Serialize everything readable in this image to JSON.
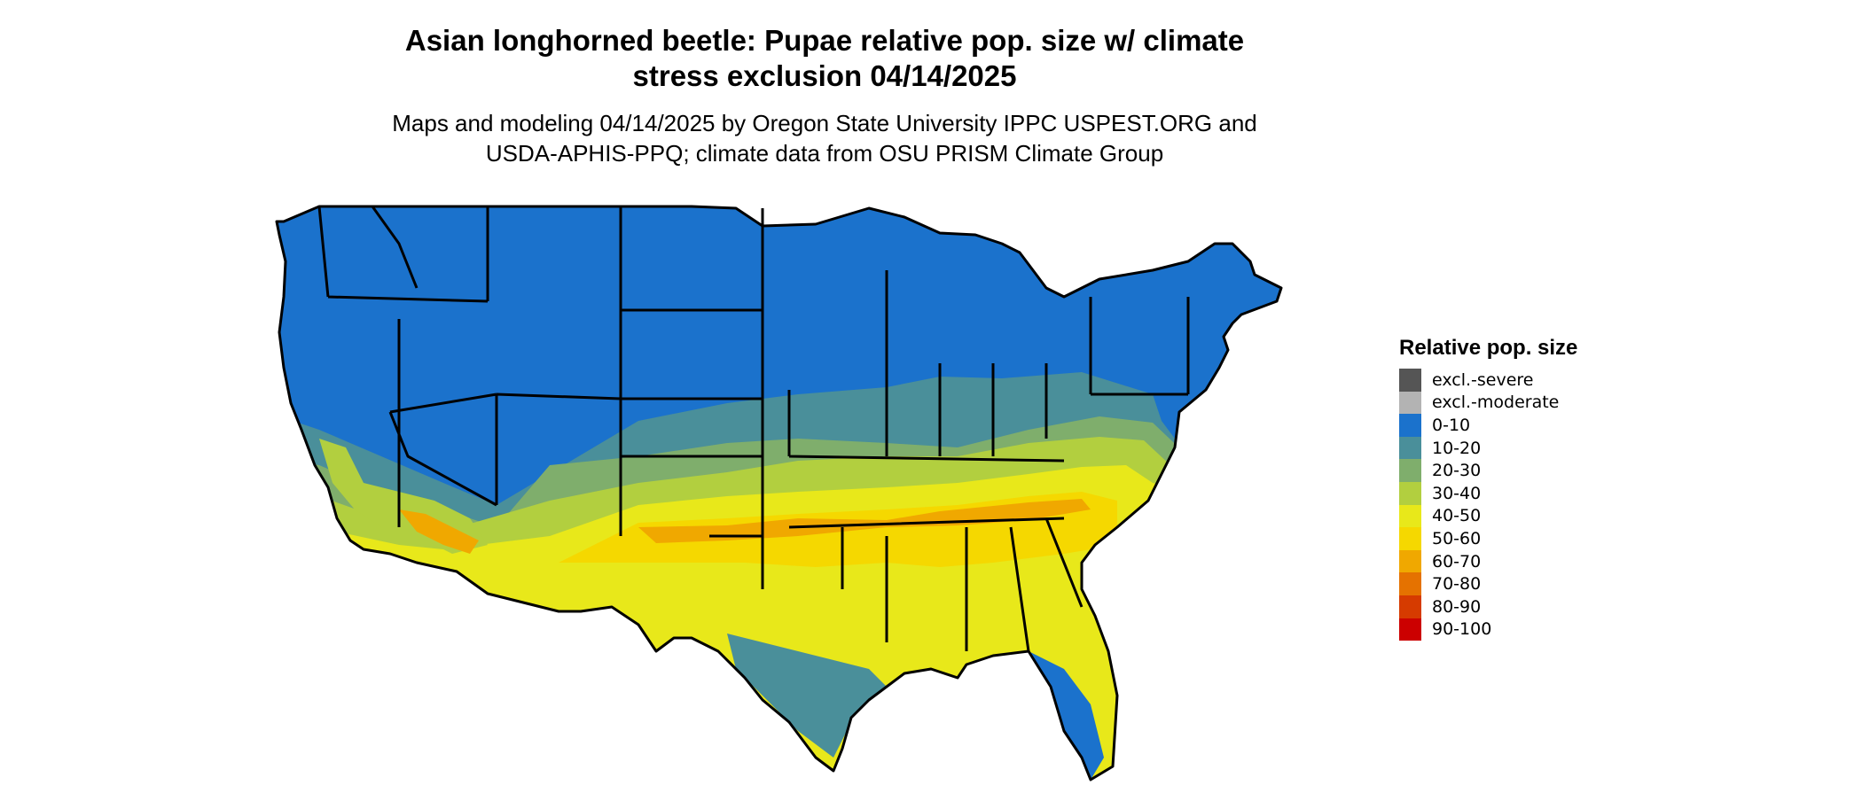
{
  "title_line1": "Asian longhorned beetle: Pupae relative pop. size w/ climate",
  "title_line2": "stress exclusion 04/14/2025",
  "subtitle_line1": "Maps and modeling 04/14/2025 by Oregon State University IPPC USPEST.ORG and",
  "subtitle_line2": "USDA-APHIS-PPQ; climate data from OSU PRISM Climate Group",
  "legend": {
    "title": "Relative pop. size",
    "items": [
      {
        "label": "excl.-severe",
        "color": "#555555"
      },
      {
        "label": "excl.-moderate",
        "color": "#b3b3b3"
      },
      {
        "label": "0-10",
        "color": "#1b72cc"
      },
      {
        "label": "10-20",
        "color": "#4a8f9a"
      },
      {
        "label": "20-30",
        "color": "#7fae6c"
      },
      {
        "label": "30-40",
        "color": "#b2cf3f"
      },
      {
        "label": "40-50",
        "color": "#e8e81a"
      },
      {
        "label": "50-60",
        "color": "#f5d800"
      },
      {
        "label": "60-70",
        "color": "#f0a800"
      },
      {
        "label": "70-80",
        "color": "#e57200"
      },
      {
        "label": "80-90",
        "color": "#d63b00"
      },
      {
        "label": "90-100",
        "color": "#cc0000"
      }
    ]
  }
}
